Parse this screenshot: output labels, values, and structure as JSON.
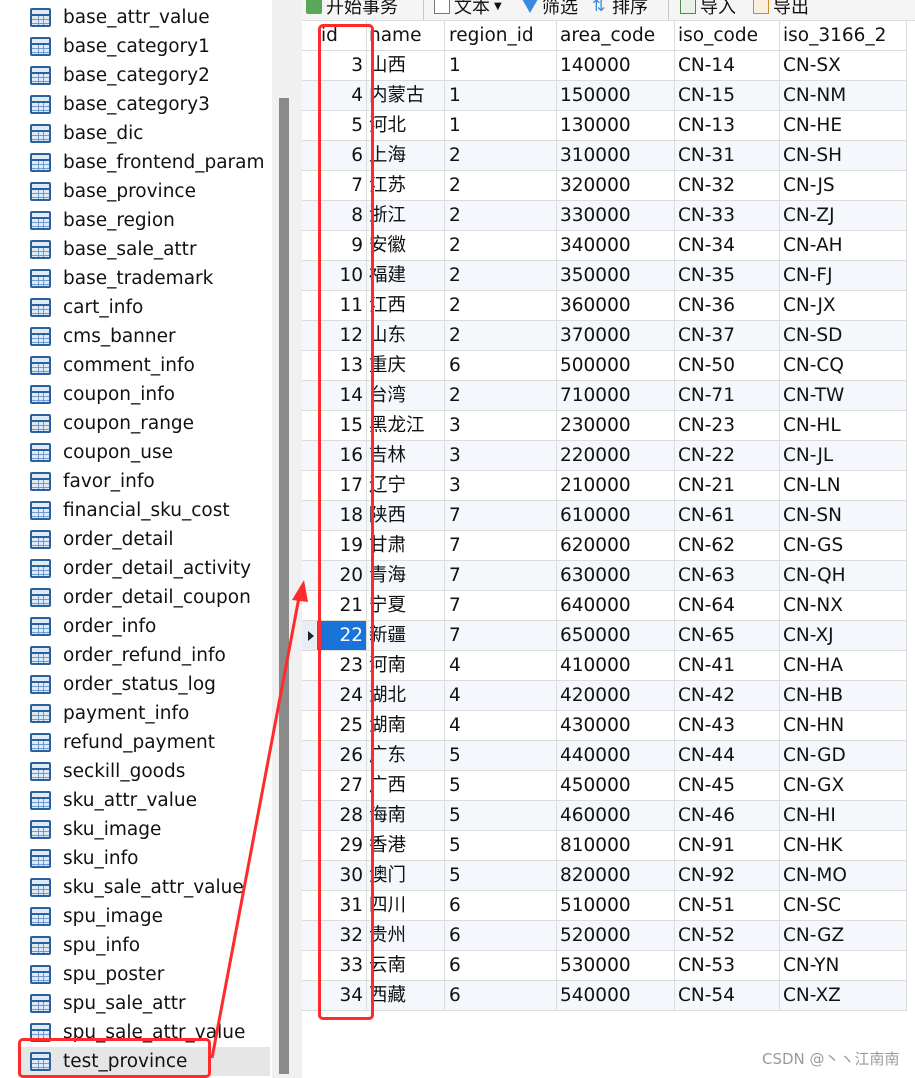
{
  "toolbar": {
    "begin_transaction": "开始事务",
    "text": "文本",
    "filter": "筛选",
    "sort": "排序",
    "import": "导入",
    "export": "导出"
  },
  "sidebar": {
    "items": [
      "base_attr_value",
      "base_category1",
      "base_category2",
      "base_category3",
      "base_dic",
      "base_frontend_param",
      "base_province",
      "base_region",
      "base_sale_attr",
      "base_trademark",
      "cart_info",
      "cms_banner",
      "comment_info",
      "coupon_info",
      "coupon_range",
      "coupon_use",
      "favor_info",
      "financial_sku_cost",
      "order_detail",
      "order_detail_activity",
      "order_detail_coupon",
      "order_info",
      "order_refund_info",
      "order_status_log",
      "payment_info",
      "refund_payment",
      "seckill_goods",
      "sku_attr_value",
      "sku_image",
      "sku_info",
      "sku_sale_attr_value",
      "spu_image",
      "spu_info",
      "spu_poster",
      "spu_sale_attr",
      "spu_sale_attr_value",
      "test_province"
    ],
    "selected": "test_province"
  },
  "grid": {
    "columns": [
      "id",
      "name",
      "region_id",
      "area_code",
      "iso_code",
      "iso_3166_2"
    ],
    "current_row_id": "22",
    "rows": [
      [
        "3",
        "山西",
        "1",
        "140000",
        "CN-14",
        "CN-SX"
      ],
      [
        "4",
        "内蒙古",
        "1",
        "150000",
        "CN-15",
        "CN-NM"
      ],
      [
        "5",
        "河北",
        "1",
        "130000",
        "CN-13",
        "CN-HE"
      ],
      [
        "6",
        "上海",
        "2",
        "310000",
        "CN-31",
        "CN-SH"
      ],
      [
        "7",
        "江苏",
        "2",
        "320000",
        "CN-32",
        "CN-JS"
      ],
      [
        "8",
        "浙江",
        "2",
        "330000",
        "CN-33",
        "CN-ZJ"
      ],
      [
        "9",
        "安徽",
        "2",
        "340000",
        "CN-34",
        "CN-AH"
      ],
      [
        "10",
        "福建",
        "2",
        "350000",
        "CN-35",
        "CN-FJ"
      ],
      [
        "11",
        "江西",
        "2",
        "360000",
        "CN-36",
        "CN-JX"
      ],
      [
        "12",
        "山东",
        "2",
        "370000",
        "CN-37",
        "CN-SD"
      ],
      [
        "13",
        "重庆",
        "6",
        "500000",
        "CN-50",
        "CN-CQ"
      ],
      [
        "14",
        "台湾",
        "2",
        "710000",
        "CN-71",
        "CN-TW"
      ],
      [
        "15",
        "黑龙江",
        "3",
        "230000",
        "CN-23",
        "CN-HL"
      ],
      [
        "16",
        "吉林",
        "3",
        "220000",
        "CN-22",
        "CN-JL"
      ],
      [
        "17",
        "辽宁",
        "3",
        "210000",
        "CN-21",
        "CN-LN"
      ],
      [
        "18",
        "陕西",
        "7",
        "610000",
        "CN-61",
        "CN-SN"
      ],
      [
        "19",
        "甘肃",
        "7",
        "620000",
        "CN-62",
        "CN-GS"
      ],
      [
        "20",
        "青海",
        "7",
        "630000",
        "CN-63",
        "CN-QH"
      ],
      [
        "21",
        "宁夏",
        "7",
        "640000",
        "CN-64",
        "CN-NX"
      ],
      [
        "22",
        "新疆",
        "7",
        "650000",
        "CN-65",
        "CN-XJ"
      ],
      [
        "23",
        "河南",
        "4",
        "410000",
        "CN-41",
        "CN-HA"
      ],
      [
        "24",
        "湖北",
        "4",
        "420000",
        "CN-42",
        "CN-HB"
      ],
      [
        "25",
        "湖南",
        "4",
        "430000",
        "CN-43",
        "CN-HN"
      ],
      [
        "26",
        "广东",
        "5",
        "440000",
        "CN-44",
        "CN-GD"
      ],
      [
        "27",
        "广西",
        "5",
        "450000",
        "CN-45",
        "CN-GX"
      ],
      [
        "28",
        "海南",
        "5",
        "460000",
        "CN-46",
        "CN-HI"
      ],
      [
        "29",
        "香港",
        "5",
        "810000",
        "CN-91",
        "CN-HK"
      ],
      [
        "30",
        "澳门",
        "5",
        "820000",
        "CN-92",
        "CN-MO"
      ],
      [
        "31",
        "四川",
        "6",
        "510000",
        "CN-51",
        "CN-SC"
      ],
      [
        "32",
        "贵州",
        "6",
        "520000",
        "CN-52",
        "CN-GZ"
      ],
      [
        "33",
        "云南",
        "6",
        "530000",
        "CN-53",
        "CN-YN"
      ],
      [
        "34",
        "西藏",
        "6",
        "540000",
        "CN-54",
        "CN-XZ"
      ]
    ]
  },
  "annotation_color": "#ff2a2a",
  "watermark": "CSDN @丶ヽ江南南"
}
